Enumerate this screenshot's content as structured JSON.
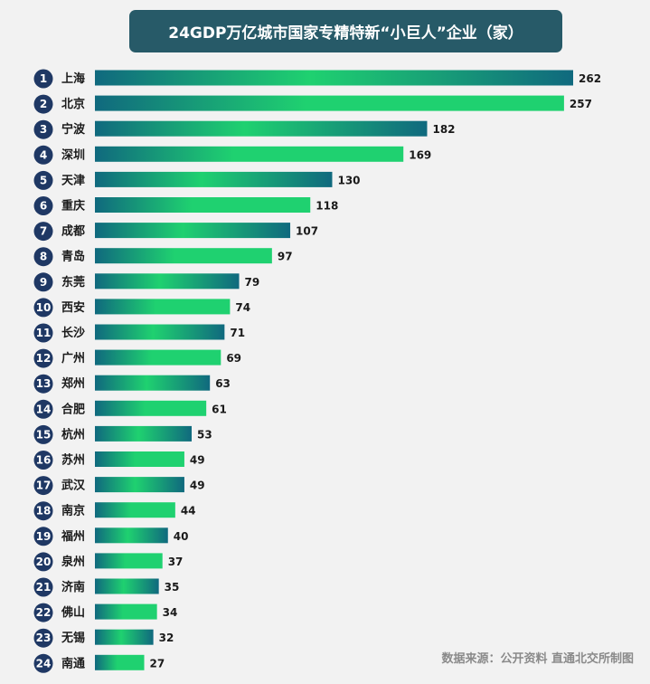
{
  "chart_data": {
    "type": "bar",
    "orientation": "horizontal",
    "title": "24GDP万亿城市国家专精特新“小巨人”企业（家）",
    "ranks": [
      "1",
      "2",
      "3",
      "4",
      "5",
      "6",
      "7",
      "8",
      "9",
      "10",
      "11",
      "12",
      "13",
      "14",
      "15",
      "16",
      "17",
      "18",
      "19",
      "20",
      "21",
      "22",
      "23",
      "24"
    ],
    "categories": [
      "上海",
      "北京",
      "宁波",
      "深圳",
      "天津",
      "重庆",
      "成都",
      "青岛",
      "东莞",
      "西安",
      "长沙",
      "广州",
      "郑州",
      "合肥",
      "杭州",
      "苏州",
      "武汉",
      "南京",
      "福州",
      "泉州",
      "济南",
      "佛山",
      "无锡",
      "南通"
    ],
    "values": [
      262,
      257,
      182,
      169,
      130,
      118,
      107,
      97,
      79,
      74,
      71,
      69,
      63,
      61,
      53,
      49,
      49,
      44,
      40,
      37,
      35,
      34,
      32,
      27
    ],
    "xlim": [
      0,
      262
    ],
    "grid": false,
    "legend": "none"
  },
  "colors": {
    "title_bg": "#275a68",
    "bar_dark": "#10697e",
    "bar_light": "#1fd170",
    "rank_circle": "#1f3864"
  },
  "source": "数据来源：公开资料  直通北交所制图"
}
